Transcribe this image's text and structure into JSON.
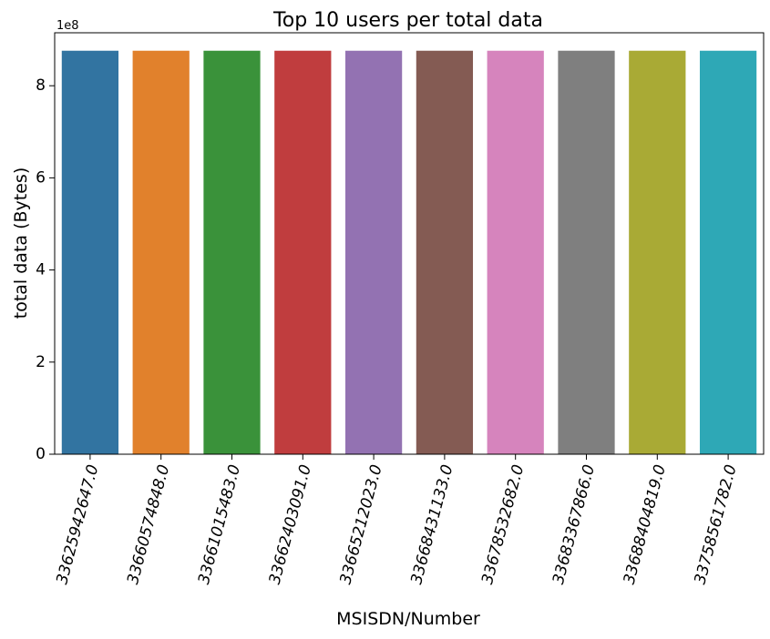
{
  "chart_data": {
    "type": "bar",
    "title": "Top 10 users per total data",
    "xlabel": "MSISDN/Number",
    "ylabel": "total data (Bytes)",
    "y_offset_label": "1e8",
    "y_ticks": [
      0,
      2,
      4,
      6,
      8
    ],
    "ylim": [
      0,
      9.15
    ],
    "grid": false,
    "legend": "none",
    "x_tick_rotation_deg": 75,
    "categories": [
      "33625942647.0",
      "33660574848.0",
      "33661015483.0",
      "33662403091.0",
      "33665212023.0",
      "33668431133.0",
      "33678532682.0",
      "33683367866.0",
      "33688404819.0",
      "33758561782.0"
    ],
    "values": [
      8.76,
      8.76,
      8.76,
      8.76,
      8.76,
      8.76,
      8.76,
      8.76,
      8.76,
      8.76
    ],
    "colors": [
      "#3274a1",
      "#e1812c",
      "#3a923a",
      "#c03d3e",
      "#9372b2",
      "#845b53",
      "#d684bd",
      "#7f7f7f",
      "#a9aa35",
      "#2ea8b6"
    ]
  }
}
